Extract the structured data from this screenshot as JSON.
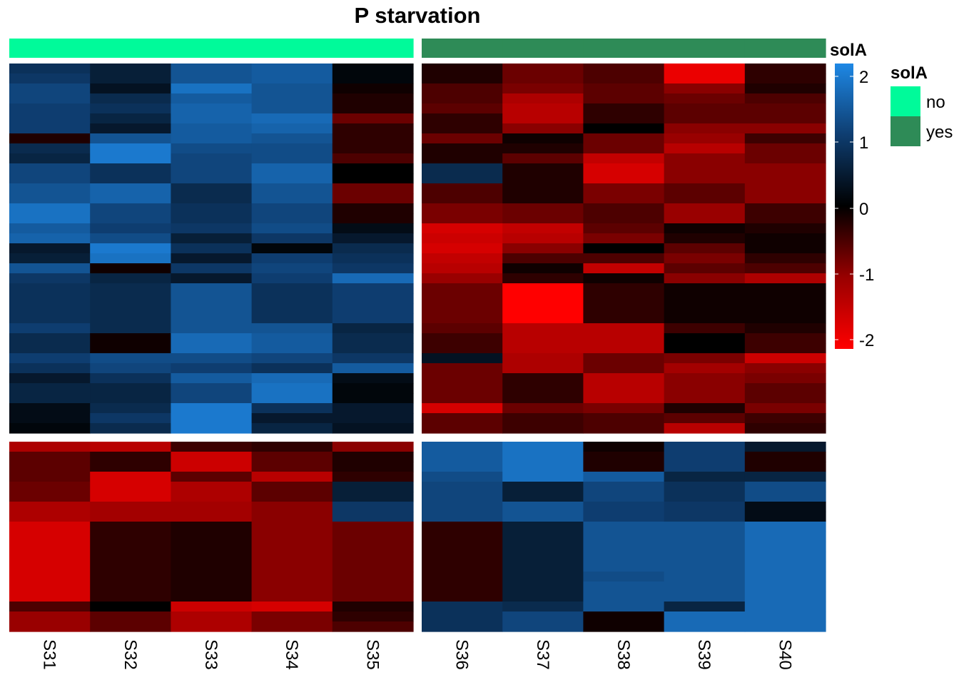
{
  "chart_data": {
    "type": "heatmap",
    "title": "P starvation",
    "columns": [
      "S31",
      "S32",
      "S33",
      "S34",
      "S35",
      "S36",
      "S37",
      "S38",
      "S39",
      "S40"
    ],
    "column_split": [
      5,
      5
    ],
    "row_split": [
      37,
      19
    ],
    "annotation": {
      "name": "solA",
      "values": [
        "no",
        "no",
        "no",
        "no",
        "no",
        "yes",
        "yes",
        "yes",
        "yes",
        "yes"
      ],
      "levels": [
        "no",
        "yes"
      ],
      "colors": {
        "no": "#00FA9A",
        "yes": "#2E8B57"
      }
    },
    "color_scale": {
      "domain": [
        -2,
        -1,
        0,
        1,
        2
      ],
      "colors": [
        "#FF0000",
        "#990000",
        "#000000",
        "#0E3D70",
        "#1E88E5"
      ],
      "legend_ticks": [
        "2",
        "1",
        "0",
        "-1",
        "-2"
      ]
    },
    "matrix": [
      [
        0.8,
        0.5,
        1.3,
        1.4,
        0.1,
        -0.2,
        -0.7,
        -0.5,
        -1.8,
        -0.3
      ],
      [
        0.9,
        0.5,
        1.3,
        1.4,
        0.1,
        -0.2,
        -0.7,
        -0.5,
        -1.8,
        -0.3
      ],
      [
        1.1,
        0.3,
        1.7,
        1.3,
        -0.1,
        -0.5,
        -0.8,
        -0.6,
        -0.9,
        -0.2
      ],
      [
        1.1,
        0.7,
        1.4,
        1.3,
        -0.2,
        -0.5,
        -1.2,
        -0.6,
        -0.7,
        -0.5
      ],
      [
        1.0,
        0.8,
        1.5,
        1.3,
        -0.2,
        -0.6,
        -1.3,
        -0.3,
        -0.6,
        -0.6
      ],
      [
        1.0,
        0.6,
        1.5,
        1.6,
        -0.7,
        -0.3,
        -1.3,
        -0.3,
        -0.6,
        -0.6
      ],
      [
        1.0,
        0.4,
        1.4,
        1.5,
        -0.3,
        -0.3,
        -0.9,
        0.0,
        -0.9,
        -0.9
      ],
      [
        -0.2,
        1.3,
        1.4,
        1.3,
        -0.3,
        -0.7,
        -0.1,
        -0.7,
        -1.0,
        -0.4
      ],
      [
        0.7,
        1.8,
        1.2,
        1.2,
        -0.3,
        -0.2,
        -0.2,
        -0.7,
        -1.3,
        -0.7
      ],
      [
        0.6,
        1.8,
        1.1,
        1.2,
        -0.5,
        -0.2,
        -0.6,
        -1.4,
        -0.9,
        -0.7
      ],
      [
        1.1,
        0.8,
        1.1,
        1.5,
        0.0,
        0.7,
        -0.2,
        -1.6,
        -0.9,
        -0.9
      ],
      [
        1.1,
        0.8,
        1.1,
        1.5,
        0.0,
        0.7,
        -0.2,
        -1.6,
        -0.9,
        -0.9
      ],
      [
        1.3,
        1.5,
        0.7,
        1.3,
        -0.7,
        -0.5,
        -0.2,
        -0.8,
        -0.6,
        -0.9
      ],
      [
        1.3,
        1.5,
        0.7,
        1.3,
        -0.7,
        -0.5,
        -0.2,
        -0.8,
        -0.6,
        -0.9
      ],
      [
        1.7,
        1.1,
        0.8,
        1.1,
        -0.2,
        -0.8,
        -0.7,
        -0.5,
        -1.0,
        -0.4
      ],
      [
        1.7,
        1.1,
        0.8,
        1.1,
        -0.2,
        -0.8,
        -0.7,
        -0.5,
        -1.0,
        -0.4
      ],
      [
        1.4,
        1.0,
        0.9,
        1.2,
        0.2,
        -1.6,
        -1.4,
        -0.6,
        -0.1,
        -0.2
      ],
      [
        1.5,
        1.2,
        0.5,
        0.9,
        0.4,
        -1.5,
        -1.3,
        -0.8,
        -0.2,
        -0.1
      ],
      [
        0.4,
        1.8,
        0.8,
        0.1,
        0.7,
        -1.6,
        -0.9,
        0.0,
        -0.6,
        -0.1
      ],
      [
        0.5,
        1.7,
        0.4,
        1.0,
        0.8,
        -1.4,
        -0.5,
        -0.5,
        -0.8,
        -0.3
      ],
      [
        1.3,
        -0.1,
        0.9,
        1.1,
        0.9,
        -1.3,
        -0.1,
        -1.4,
        -0.6,
        -0.5
      ],
      [
        0.9,
        0.6,
        0.4,
        1.0,
        1.6,
        -1.0,
        -0.3,
        -0.1,
        -0.9,
        -1.2
      ],
      [
        0.8,
        0.7,
        1.3,
        0.8,
        1.0,
        -0.7,
        -2.0,
        -0.3,
        -0.1,
        -0.1
      ],
      [
        0.8,
        0.7,
        1.3,
        0.8,
        1.0,
        -0.7,
        -2.0,
        -0.3,
        -0.1,
        -0.1
      ],
      [
        0.8,
        0.7,
        1.3,
        0.8,
        1.0,
        -0.7,
        -2.0,
        -0.3,
        -0.1,
        -0.1
      ],
      [
        0.8,
        0.7,
        1.3,
        0.8,
        1.0,
        -0.7,
        -2.0,
        -0.3,
        -0.1,
        -0.1
      ],
      [
        1.0,
        0.7,
        1.3,
        1.3,
        0.6,
        -0.6,
        -1.3,
        -1.3,
        -0.4,
        -0.2
      ],
      [
        0.7,
        -0.1,
        1.6,
        1.4,
        0.7,
        -0.4,
        -1.3,
        -1.3,
        0.0,
        -0.4
      ],
      [
        0.7,
        -0.1,
        1.6,
        1.4,
        0.7,
        -0.4,
        -1.3,
        -1.3,
        0.0,
        -0.4
      ],
      [
        1.0,
        1.2,
        1.2,
        1.1,
        0.9,
        0.3,
        -1.2,
        -0.7,
        -0.8,
        -1.5
      ],
      [
        0.8,
        1.1,
        1.0,
        0.8,
        1.4,
        -0.7,
        -1.2,
        -0.7,
        -1.1,
        -0.9
      ],
      [
        0.4,
        0.8,
        1.4,
        1.6,
        0.2,
        -0.7,
        -0.3,
        -1.3,
        -0.9,
        -0.8
      ],
      [
        0.6,
        0.6,
        1.1,
        1.7,
        0.1,
        -0.7,
        -0.3,
        -1.3,
        -0.9,
        -0.6
      ],
      [
        0.6,
        0.6,
        1.1,
        1.7,
        0.1,
        -0.7,
        -0.3,
        -1.3,
        -0.9,
        -0.6
      ],
      [
        0.2,
        0.7,
        1.8,
        0.8,
        0.4,
        -1.6,
        -0.7,
        -0.8,
        -0.2,
        -0.8
      ],
      [
        0.2,
        0.9,
        1.8,
        0.4,
        0.4,
        -0.6,
        -0.4,
        -0.5,
        -0.6,
        -0.4
      ],
      [
        0.1,
        0.7,
        1.8,
        0.6,
        0.3,
        -0.6,
        -0.4,
        -0.5,
        -1.3,
        -0.3
      ],
      [
        -1.2,
        -1.3,
        -0.4,
        -0.3,
        -0.9,
        1.4,
        1.7,
        -0.1,
        1.0,
        0.4
      ],
      [
        -0.6,
        -0.3,
        -1.5,
        -0.6,
        -0.2,
        1.4,
        1.7,
        -0.2,
        1.0,
        -0.2
      ],
      [
        -0.6,
        -0.3,
        -1.5,
        -0.6,
        -0.2,
        1.4,
        1.7,
        -0.2,
        1.0,
        -0.2
      ],
      [
        -0.6,
        -1.6,
        -0.6,
        -1.3,
        -0.3,
        1.2,
        1.7,
        1.4,
        0.6,
        0.6
      ],
      [
        -0.7,
        -1.6,
        -1.2,
        -0.6,
        0.5,
        1.1,
        0.5,
        1.1,
        0.8,
        1.2
      ],
      [
        -0.7,
        -1.6,
        -1.2,
        -0.6,
        0.5,
        1.1,
        0.5,
        1.1,
        0.8,
        1.2
      ],
      [
        -1.2,
        -1.1,
        -1.1,
        -0.9,
        0.9,
        1.1,
        1.3,
        1.0,
        0.9,
        0.2
      ],
      [
        -1.2,
        -1.1,
        -1.1,
        -0.9,
        0.9,
        1.1,
        1.3,
        1.0,
        0.9,
        0.2
      ],
      [
        -1.6,
        -0.3,
        -0.2,
        -0.9,
        -0.7,
        -0.3,
        0.5,
        1.3,
        1.3,
        1.6
      ],
      [
        -1.6,
        -0.3,
        -0.2,
        -0.9,
        -0.7,
        -0.3,
        0.5,
        1.3,
        1.3,
        1.6
      ],
      [
        -1.6,
        -0.3,
        -0.2,
        -0.9,
        -0.7,
        -0.3,
        0.5,
        1.3,
        1.3,
        1.6
      ],
      [
        -1.6,
        -0.3,
        -0.2,
        -0.9,
        -0.7,
        -0.3,
        0.5,
        1.3,
        1.3,
        1.6
      ],
      [
        -1.6,
        -0.3,
        -0.2,
        -0.9,
        -0.7,
        -0.3,
        0.5,
        1.3,
        1.3,
        1.6
      ],
      [
        -1.6,
        -0.3,
        -0.2,
        -0.9,
        -0.7,
        -0.3,
        0.5,
        1.2,
        1.3,
        1.6
      ],
      [
        -1.6,
        -0.3,
        -0.2,
        -0.9,
        -0.7,
        -0.3,
        0.5,
        1.3,
        1.3,
        1.6
      ],
      [
        -1.6,
        -0.3,
        -0.2,
        -0.9,
        -0.7,
        -0.3,
        0.5,
        1.3,
        1.3,
        1.6
      ],
      [
        -0.5,
        0.0,
        -1.5,
        -1.6,
        -0.2,
        0.8,
        0.7,
        1.3,
        0.6,
        1.6
      ],
      [
        -1.0,
        -0.6,
        -1.2,
        -0.8,
        -0.3,
        0.8,
        1.1,
        -0.1,
        1.6,
        1.6
      ],
      [
        -1.0,
        -0.6,
        -1.2,
        -0.8,
        -0.5,
        0.8,
        1.1,
        -0.1,
        1.6,
        1.6
      ]
    ]
  }
}
